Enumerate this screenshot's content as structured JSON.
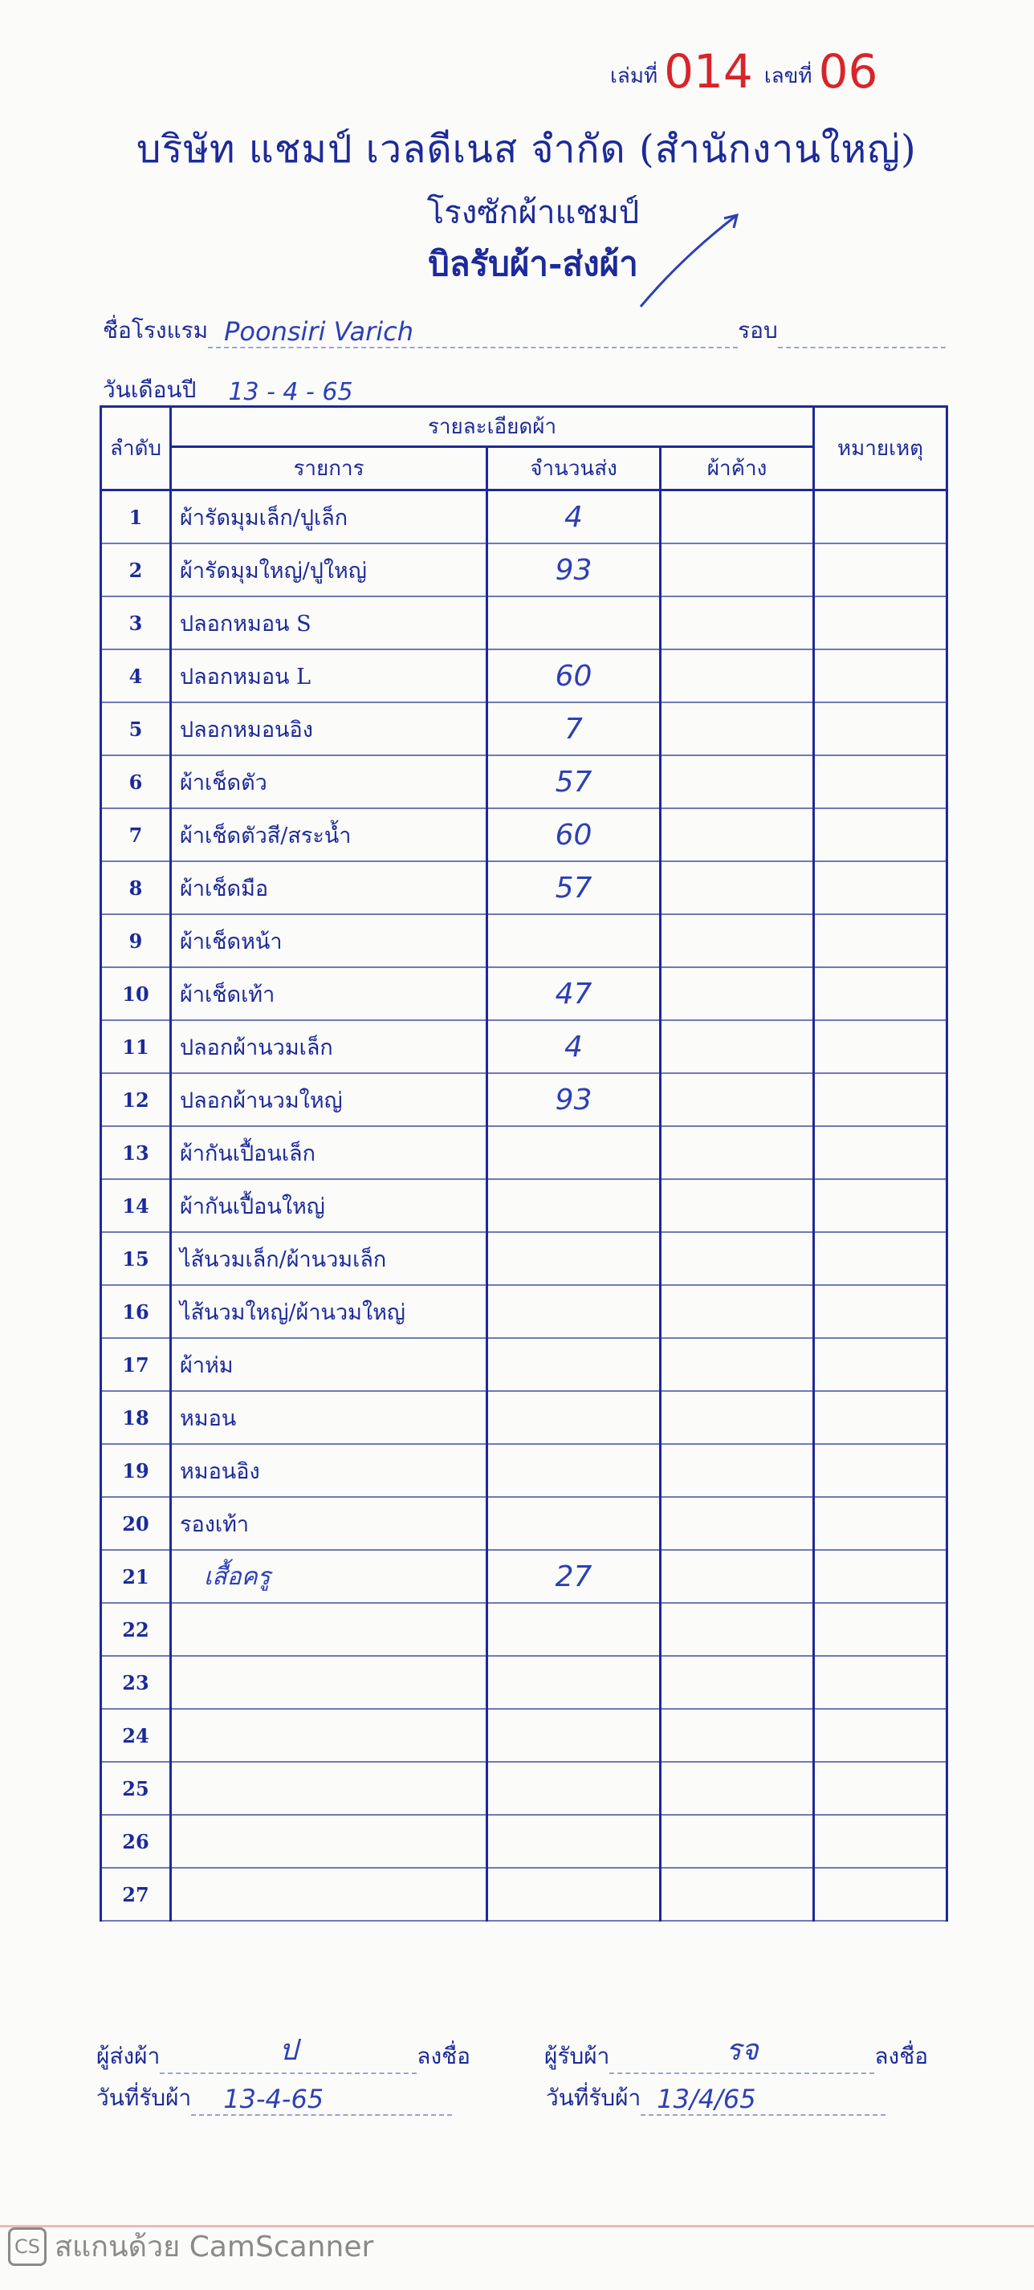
{
  "header": {
    "book_label": "เล่มที่",
    "book_number": "014",
    "serial_label": "เลขที่",
    "serial_number": "06",
    "company": "บริษัท แชมป์ เวลดีเนส จำกัด (สำนักงานใหญ่)",
    "factory": "โรงซักผ้าแชมป์",
    "bill_title": "บิลรับผ้า-ส่งผ้า"
  },
  "form": {
    "hotel_label": "ชื่อโรงแรม",
    "hotel_value": "Poonsiri Varich",
    "round_label": "รอบ",
    "round_value": "",
    "date_label": "วันเดือนปี",
    "date_value": "13 - 4 - 65"
  },
  "table": {
    "col_no": "ลำดับ",
    "col_group": "รายละเอียดผ้า",
    "col_item": "รายการ",
    "col_qty": "จำนวนส่ง",
    "col_pending": "ผ้าค้าง",
    "col_remark": "หมายเหตุ",
    "rows": [
      {
        "no": "1",
        "item": "ผ้ารัดมุมเล็ก/ปูเล็ก",
        "qty": "4",
        "pending": "",
        "remark": ""
      },
      {
        "no": "2",
        "item": "ผ้ารัดมุมใหญ่/ปูใหญ่",
        "qty": "93",
        "pending": "",
        "remark": ""
      },
      {
        "no": "3",
        "item": "ปลอกหมอน S",
        "qty": "",
        "pending": "",
        "remark": ""
      },
      {
        "no": "4",
        "item": "ปลอกหมอน L",
        "qty": "60",
        "pending": "",
        "remark": ""
      },
      {
        "no": "5",
        "item": "ปลอกหมอนอิง",
        "qty": "7",
        "pending": "",
        "remark": ""
      },
      {
        "no": "6",
        "item": "ผ้าเช็ดตัว",
        "qty": "57",
        "pending": "",
        "remark": ""
      },
      {
        "no": "7",
        "item": "ผ้าเช็ดตัวสี/สระน้ำ",
        "qty": "60",
        "pending": "",
        "remark": ""
      },
      {
        "no": "8",
        "item": "ผ้าเช็ดมือ",
        "qty": "57",
        "pending": "",
        "remark": ""
      },
      {
        "no": "9",
        "item": "ผ้าเช็ดหน้า",
        "qty": "",
        "pending": "",
        "remark": ""
      },
      {
        "no": "10",
        "item": "ผ้าเช็ดเท้า",
        "qty": "47",
        "pending": "",
        "remark": ""
      },
      {
        "no": "11",
        "item": "ปลอกผ้านวมเล็ก",
        "qty": "4",
        "pending": "",
        "remark": ""
      },
      {
        "no": "12",
        "item": "ปลอกผ้านวมใหญ่",
        "qty": "93",
        "pending": "",
        "remark": ""
      },
      {
        "no": "13",
        "item": "ผ้ากันเปื้อนเล็ก",
        "qty": "",
        "pending": "",
        "remark": ""
      },
      {
        "no": "14",
        "item": "ผ้ากันเปื้อนใหญ่",
        "qty": "",
        "pending": "",
        "remark": ""
      },
      {
        "no": "15",
        "item": "ไส้นวมเล็ก/ผ้านวมเล็ก",
        "qty": "",
        "pending": "",
        "remark": ""
      },
      {
        "no": "16",
        "item": "ไส้นวมใหญ่/ผ้านวมใหญ่",
        "qty": "",
        "pending": "",
        "remark": ""
      },
      {
        "no": "17",
        "item": "ผ้าห่ม",
        "qty": "",
        "pending": "",
        "remark": ""
      },
      {
        "no": "18",
        "item": "หมอน",
        "qty": "",
        "pending": "",
        "remark": ""
      },
      {
        "no": "19",
        "item": "หมอนอิง",
        "qty": "",
        "pending": "",
        "remark": ""
      },
      {
        "no": "20",
        "item": "รองเท้า",
        "qty": "",
        "pending": "",
        "remark": ""
      },
      {
        "no": "21",
        "item": "เสื้อครู",
        "qty": "27",
        "pending": "",
        "remark": "",
        "handwritten": true
      },
      {
        "no": "22",
        "item": "",
        "qty": "",
        "pending": "",
        "remark": ""
      },
      {
        "no": "23",
        "item": "",
        "qty": "",
        "pending": "",
        "remark": ""
      },
      {
        "no": "24",
        "item": "",
        "qty": "",
        "pending": "",
        "remark": ""
      },
      {
        "no": "25",
        "item": "",
        "qty": "",
        "pending": "",
        "remark": ""
      },
      {
        "no": "26",
        "item": "",
        "qty": "",
        "pending": "",
        "remark": ""
      },
      {
        "no": "27",
        "item": "",
        "qty": "",
        "pending": "",
        "remark": ""
      }
    ]
  },
  "signatures": {
    "sender_label": "ผู้ส่งผ้า",
    "sender_value": "ป",
    "sign_label": "ลงชื่อ",
    "receiver_label": "ผู้รับผ้า",
    "receiver_value": "รจ",
    "sender_date_label": "วันที่รับผ้า",
    "sender_date_value": "13-4-65",
    "receiver_date_label": "วันที่รับผ้า",
    "receiver_date_value": "13/4/65"
  },
  "footer": {
    "logo_text": "CS",
    "text": "สแกนด้วย CamScanner"
  },
  "colors": {
    "ink": "#1c2a9a",
    "handwriting": "#2c3fb8",
    "serial_red": "#d8242a"
  }
}
